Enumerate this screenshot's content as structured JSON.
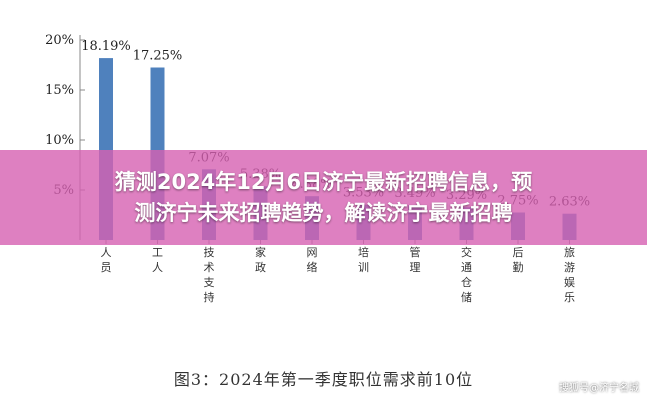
{
  "chart_data": {
    "type": "bar",
    "title": "",
    "xlabel": "",
    "ylabel": "",
    "ylim": [
      0,
      20
    ],
    "yticks": [
      "20%",
      "15%",
      "10%",
      "5%"
    ],
    "ytick_values": [
      20,
      15,
      10,
      5
    ],
    "bar_color": "#4f81bd",
    "values": [
      18.19,
      17.25,
      7.07,
      5.38,
      4.38,
      3.53,
      3.49,
      3.29,
      2.75,
      2.63
    ],
    "value_labels": [
      "18.19%",
      "17.25%",
      "7.07%",
      "5.38%",
      "4.38%",
      "3.53%",
      "3.49%",
      "3.29%",
      "2.75%",
      "2.63%"
    ],
    "categories": [
      "人员",
      "工人",
      "技术支持",
      "家政",
      "网络",
      "培训",
      "管理",
      "交通仓储",
      "后勤",
      "旅游娱乐"
    ],
    "category_label_chars": [
      [
        "人",
        "员"
      ],
      [
        "工",
        "人"
      ],
      [
        "技",
        "术",
        "支",
        "持"
      ],
      [
        "家",
        "政"
      ],
      [
        "网",
        "络"
      ],
      [
        "培",
        "训"
      ],
      [
        "管",
        "理"
      ],
      [
        "交",
        "通",
        "仓",
        "储"
      ],
      [
        "后",
        "勤"
      ],
      [
        "旅",
        "游",
        "娱",
        "乐"
      ]
    ]
  },
  "caption": "图3：2024年第一季度职位需求前10位",
  "banner": {
    "line1": "猜测2024年12月6日济宁最新招聘信息，预",
    "line2": "测济宁未来招聘趋势，解读济宁最新招聘"
  },
  "watermark": "搜狐号@济宁名城"
}
